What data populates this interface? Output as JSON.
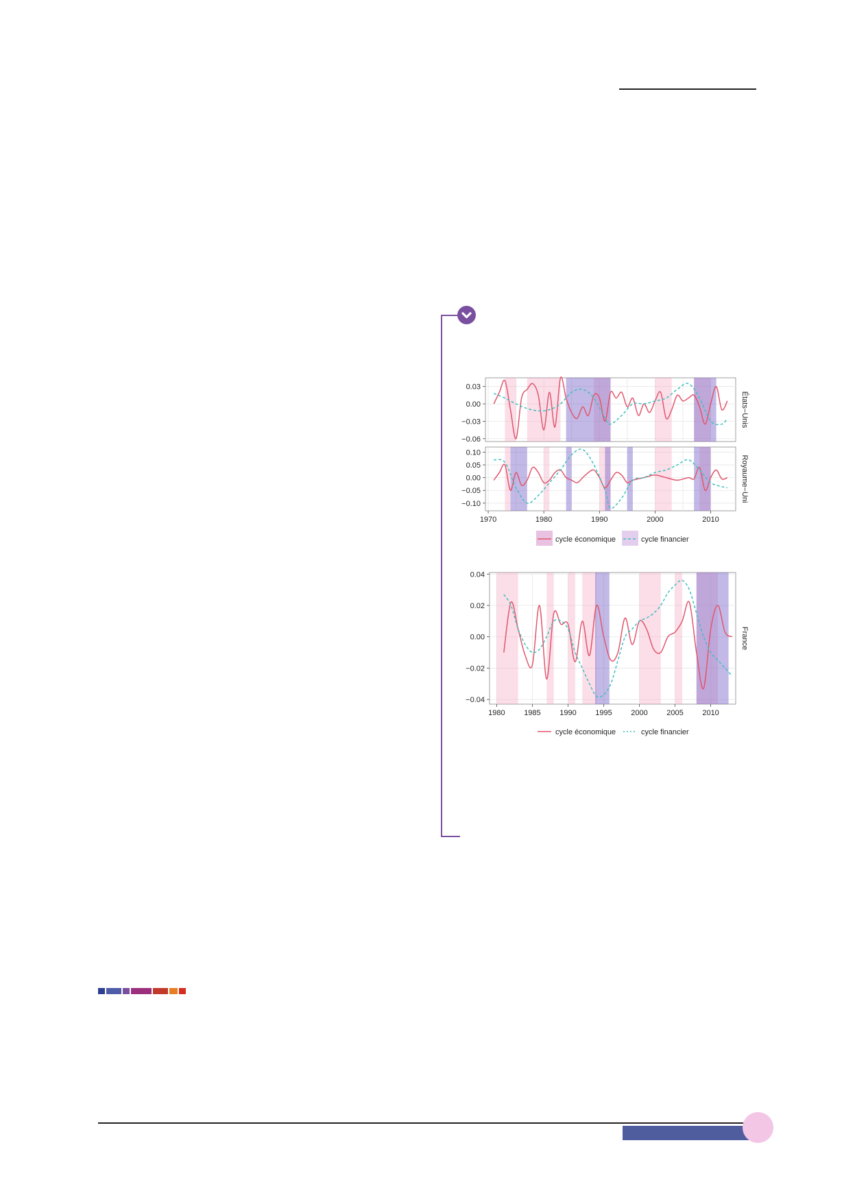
{
  "page": {
    "colorbar": [
      "#2f3f8f",
      "#4f5ca8",
      "#7b4fa0",
      "#9b2f7e",
      "#c0392b",
      "#e67e22",
      "#d62d20"
    ]
  },
  "chart_data": [
    {
      "type": "line",
      "panels": [
        {
          "name": "États−Unis",
          "ylim": [
            -0.065,
            0.045
          ],
          "yticks": [
            "0.03",
            "0.00",
            "−0.03",
            "−0.06"
          ],
          "ytick_values": [
            0.03,
            0.0,
            -0.03,
            -0.06
          ],
          "series": [
            {
              "name": "cycle économique",
              "values": [
                [
                  1971,
                  0.0
                ],
                [
                  1972,
                  0.02
                ],
                [
                  1973,
                  0.04
                ],
                [
                  1974,
                  -0.01
                ],
                [
                  1975,
                  -0.06
                ],
                [
                  1976,
                  0.01
                ],
                [
                  1977,
                  0.025
                ],
                [
                  1978,
                  0.035
                ],
                [
                  1979,
                  0.015
                ],
                [
                  1980,
                  -0.045
                ],
                [
                  1981,
                  0.02
                ],
                [
                  1982,
                  -0.04
                ],
                [
                  1983,
                  0.045
                ],
                [
                  1984,
                  0.01
                ],
                [
                  1985,
                  -0.015
                ],
                [
                  1986,
                  -0.025
                ],
                [
                  1987,
                  -0.005
                ],
                [
                  1988,
                  -0.02
                ],
                [
                  1989,
                  0.015
                ],
                [
                  1990,
                  0.01
                ],
                [
                  1991,
                  -0.03
                ],
                [
                  1992,
                  0.02
                ],
                [
                  1993,
                  0.01
                ],
                [
                  1994,
                  0.02
                ],
                [
                  1995,
                  -0.005
                ],
                [
                  1996,
                  0.01
                ],
                [
                  1997,
                  -0.02
                ],
                [
                  1998,
                  0.0
                ],
                [
                  1999,
                  -0.015
                ],
                [
                  2000,
                  0.005
                ],
                [
                  2001,
                  0.02
                ],
                [
                  2002,
                  -0.025
                ],
                [
                  2003,
                  -0.01
                ],
                [
                  2004,
                  0.015
                ],
                [
                  2005,
                  0.005
                ],
                [
                  2006,
                  0.01
                ],
                [
                  2007,
                  0.015
                ],
                [
                  2008,
                  -0.005
                ],
                [
                  2009,
                  -0.035
                ],
                [
                  2010,
                  0.0
                ],
                [
                  2011,
                  0.03
                ],
                [
                  2012,
                  -0.01
                ],
                [
                  2013,
                  0.005
                ]
              ]
            },
            {
              "name": "cycle financier",
              "values": [
                [
                  1971,
                  0.018
                ],
                [
                  1973,
                  0.01
                ],
                [
                  1975,
                  0.0
                ],
                [
                  1977,
                  -0.008
                ],
                [
                  1979,
                  -0.012
                ],
                [
                  1981,
                  -0.01
                ],
                [
                  1983,
                  0.0
                ],
                [
                  1985,
                  0.02
                ],
                [
                  1987,
                  0.025
                ],
                [
                  1989,
                  0.01
                ],
                [
                  1991,
                  -0.025
                ],
                [
                  1992,
                  -0.035
                ],
                [
                  1994,
                  -0.02
                ],
                [
                  1996,
                  0.0
                ],
                [
                  1998,
                  0.0
                ],
                [
                  2000,
                  0.005
                ],
                [
                  2002,
                  0.01
                ],
                [
                  2004,
                  0.025
                ],
                [
                  2006,
                  0.035
                ],
                [
                  2008,
                  0.01
                ],
                [
                  2010,
                  -0.03
                ],
                [
                  2012,
                  -0.035
                ],
                [
                  2013,
                  -0.025
                ]
              ]
            }
          ],
          "bands_eco": [
            [
              1973,
              1975
            ],
            [
              1977,
              1983
            ],
            [
              1989,
              1992
            ],
            [
              2000,
              2003
            ],
            [
              2007,
              2010
            ]
          ],
          "bands_fin": [
            [
              1984,
              1992
            ],
            [
              2007,
              2011
            ]
          ]
        },
        {
          "name": "Royaume−Uni",
          "ylim": [
            -0.13,
            0.12
          ],
          "yticks": [
            "0.10",
            "0.05",
            "0.00",
            "−0.05",
            "−0.10"
          ],
          "ytick_values": [
            0.1,
            0.05,
            0.0,
            -0.05,
            -0.1
          ],
          "series": [
            {
              "name": "cycle économique",
              "values": [
                [
                  1971,
                  -0.01
                ],
                [
                  1972,
                  0.02
                ],
                [
                  1973,
                  0.05
                ],
                [
                  1974,
                  -0.05
                ],
                [
                  1975,
                  0.02
                ],
                [
                  1976,
                  -0.03
                ],
                [
                  1977,
                  -0.01
                ],
                [
                  1978,
                  0.04
                ],
                [
                  1979,
                  0.02
                ],
                [
                  1980,
                  -0.02
                ],
                [
                  1981,
                  -0.01
                ],
                [
                  1982,
                  0.02
                ],
                [
                  1983,
                  0.03
                ],
                [
                  1984,
                  0.0
                ],
                [
                  1985,
                  -0.01
                ],
                [
                  1986,
                  -0.02
                ],
                [
                  1987,
                  0.0
                ],
                [
                  1988,
                  0.02
                ],
                [
                  1989,
                  0.03
                ],
                [
                  1990,
                  0.0
                ],
                [
                  1991,
                  -0.04
                ],
                [
                  1992,
                  -0.01
                ],
                [
                  1993,
                  0.02
                ],
                [
                  1994,
                  0.01
                ],
                [
                  1995,
                  -0.02
                ],
                [
                  1996,
                  -0.01
                ],
                [
                  1998,
                  0.0
                ],
                [
                  2000,
                  0.01
                ],
                [
                  2002,
                  0.0
                ],
                [
                  2004,
                  -0.01
                ],
                [
                  2006,
                  0.0
                ],
                [
                  2007,
                  -0.005
                ],
                [
                  2008,
                  0.04
                ],
                [
                  2009,
                  -0.05
                ],
                [
                  2010,
                  0.0
                ],
                [
                  2011,
                  0.03
                ],
                [
                  2012,
                  -0.005
                ],
                [
                  2013,
                  0.0
                ]
              ]
            },
            {
              "name": "cycle financier",
              "values": [
                [
                  1971,
                  0.07
                ],
                [
                  1973,
                  0.06
                ],
                [
                  1975,
                  -0.04
                ],
                [
                  1977,
                  -0.1
                ],
                [
                  1979,
                  -0.07
                ],
                [
                  1981,
                  -0.02
                ],
                [
                  1983,
                  0.03
                ],
                [
                  1985,
                  0.09
                ],
                [
                  1987,
                  0.11
                ],
                [
                  1989,
                  0.05
                ],
                [
                  1991,
                  -0.05
                ],
                [
                  1992,
                  -0.12
                ],
                [
                  1994,
                  -0.08
                ],
                [
                  1996,
                  -0.01
                ],
                [
                  1998,
                  0.0
                ],
                [
                  2000,
                  0.02
                ],
                [
                  2002,
                  0.03
                ],
                [
                  2004,
                  0.05
                ],
                [
                  2006,
                  0.07
                ],
                [
                  2008,
                  0.03
                ],
                [
                  2010,
                  -0.02
                ],
                [
                  2012,
                  -0.035
                ],
                [
                  2013,
                  -0.04
                ]
              ]
            }
          ],
          "bands_eco": [
            [
              1973,
              1974
            ],
            [
              1980,
              1981
            ],
            [
              1990,
              1992
            ],
            [
              2000,
              2003
            ],
            [
              2008,
              2010
            ]
          ],
          "bands_fin": [
            [
              1974,
              1977
            ],
            [
              1984,
              1985
            ],
            [
              1991,
              1992
            ],
            [
              1995,
              1996
            ],
            [
              2007,
              2010
            ]
          ]
        }
      ],
      "xlim": [
        1969.5,
        2014.5
      ],
      "xticks": [
        1970,
        1980,
        1990,
        2000,
        2010
      ],
      "legend": [
        "cycle économique",
        "cycle financier"
      ],
      "legend_position": "bottom"
    },
    {
      "type": "line",
      "panel_name": "France",
      "xlim": [
        1979,
        2013.5
      ],
      "ylim": [
        -0.043,
        0.041
      ],
      "xticks": [
        1980,
        1985,
        1990,
        1995,
        2000,
        2005,
        2010
      ],
      "yticks": [
        "0.04",
        "0.02",
        "0.00",
        "−0.02",
        "−0.04"
      ],
      "ytick_values": [
        0.04,
        0.02,
        0.0,
        -0.02,
        -0.04
      ],
      "series": [
        {
          "name": "cycle économique",
          "values": [
            [
              1981,
              -0.01
            ],
            [
              1982,
              0.022
            ],
            [
              1983,
              0.005
            ],
            [
              1984,
              -0.012
            ],
            [
              1985,
              -0.018
            ],
            [
              1986,
              0.02
            ],
            [
              1987,
              -0.027
            ],
            [
              1988,
              0.015
            ],
            [
              1989,
              0.008
            ],
            [
              1990,
              0.008
            ],
            [
              1991,
              -0.016
            ],
            [
              1992,
              0.01
            ],
            [
              1993,
              -0.012
            ],
            [
              1994,
              0.02
            ],
            [
              1995,
              0.0
            ],
            [
              1996,
              -0.015
            ],
            [
              1997,
              -0.01
            ],
            [
              1998,
              0.012
            ],
            [
              1999,
              -0.005
            ],
            [
              2000,
              0.01
            ],
            [
              2001,
              0.005
            ],
            [
              2002,
              -0.008
            ],
            [
              2003,
              -0.01
            ],
            [
              2004,
              0.0
            ],
            [
              2005,
              0.003
            ],
            [
              2006,
              0.01
            ],
            [
              2007,
              0.022
            ],
            [
              2008,
              -0.01
            ],
            [
              2009,
              -0.033
            ],
            [
              2010,
              0.005
            ],
            [
              2011,
              0.02
            ],
            [
              2012,
              0.003
            ],
            [
              2013,
              0.0
            ]
          ]
        },
        {
          "name": "cycle financier",
          "values": [
            [
              1981,
              0.027
            ],
            [
              1982,
              0.02
            ],
            [
              1983,
              0.005
            ],
            [
              1984,
              -0.005
            ],
            [
              1985,
              -0.01
            ],
            [
              1986,
              -0.008
            ],
            [
              1987,
              0.0
            ],
            [
              1988,
              0.01
            ],
            [
              1989,
              0.01
            ],
            [
              1990,
              0.005
            ],
            [
              1991,
              -0.01
            ],
            [
              1992,
              -0.02
            ],
            [
              1993,
              -0.03
            ],
            [
              1994,
              -0.038
            ],
            [
              1995,
              -0.037
            ],
            [
              1996,
              -0.03
            ],
            [
              1997,
              -0.015
            ],
            [
              1998,
              0.0
            ],
            [
              1999,
              0.005
            ],
            [
              2000,
              0.01
            ],
            [
              2001,
              0.012
            ],
            [
              2002,
              0.015
            ],
            [
              2003,
              0.02
            ],
            [
              2004,
              0.028
            ],
            [
              2005,
              0.033
            ],
            [
              2006,
              0.036
            ],
            [
              2007,
              0.03
            ],
            [
              2008,
              0.015
            ],
            [
              2009,
              0.0
            ],
            [
              2010,
              -0.01
            ],
            [
              2011,
              -0.015
            ],
            [
              2012,
              -0.02
            ],
            [
              2013,
              -0.025
            ]
          ]
        }
      ],
      "bands_eco": [
        [
          1980,
          1983
        ],
        [
          1987,
          1988
        ],
        [
          1990,
          1991
        ],
        [
          1992,
          1994
        ],
        [
          2000,
          2003
        ],
        [
          2005,
          2006
        ],
        [
          2008,
          2011
        ]
      ],
      "bands_fin": [
        [
          1993.8,
          1995.8
        ],
        [
          2008,
          2012.5
        ]
      ],
      "legend": [
        "cycle économique",
        "cycle financier"
      ],
      "legend_position": "bottom"
    }
  ]
}
